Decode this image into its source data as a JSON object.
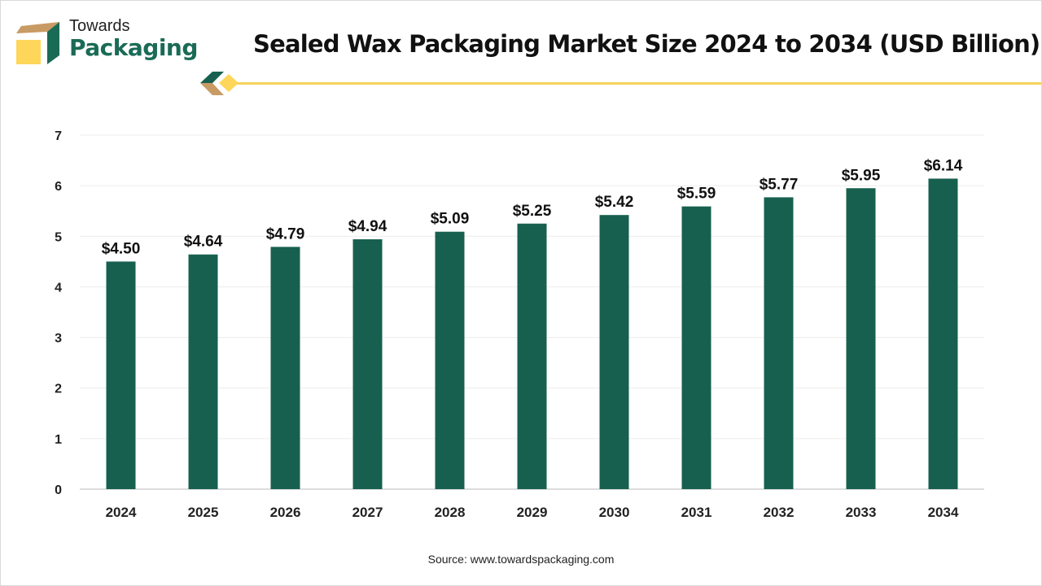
{
  "logo": {
    "line1": "Towards",
    "line2": "Packaging"
  },
  "colors": {
    "bar": "#17604f",
    "accent": "#f5d35a",
    "logo_brown": "#c89b64"
  },
  "source": "Source: www.towardspackaging.com",
  "chart_data": {
    "type": "bar",
    "title": "Sealed Wax Packaging Market Size 2024 to 2034 (USD Billion)",
    "xlabel": "",
    "ylabel": "",
    "categories": [
      "2024",
      "2025",
      "2026",
      "2027",
      "2028",
      "2029",
      "2030",
      "2031",
      "2032",
      "2033",
      "2034"
    ],
    "values": [
      4.5,
      4.64,
      4.79,
      4.94,
      5.09,
      5.25,
      5.42,
      5.59,
      5.77,
      5.95,
      6.14
    ],
    "data_labels": [
      "$4.50",
      "$4.64",
      "$4.79",
      "$4.94",
      "$5.09",
      "$5.25",
      "$5.42",
      "$5.59",
      "$5.77",
      "$5.95",
      "$6.14"
    ],
    "ylim": [
      0,
      7
    ],
    "yticks": [
      "0",
      "1",
      "2",
      "3",
      "4",
      "5",
      "6",
      "7"
    ],
    "grid": true,
    "legend": "none"
  }
}
